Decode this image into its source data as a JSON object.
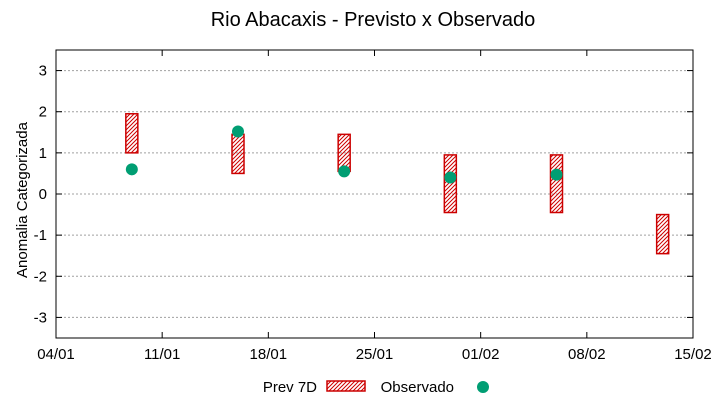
{
  "chart_data": {
    "type": "range-bar-scatter",
    "title": "Rio Abacaxis - Previsto x Observado",
    "ylabel": "Anomalia Categorizada",
    "xlabel": "",
    "xlim": [
      "2025-01-04",
      "2025-02-15"
    ],
    "ylim": [
      -3.5,
      3.5
    ],
    "grid": true,
    "x_ticks": [
      {
        "date": "2025-01-04",
        "label": "04/01"
      },
      {
        "date": "2025-01-11",
        "label": "11/01"
      },
      {
        "date": "2025-01-18",
        "label": "18/01"
      },
      {
        "date": "2025-01-25",
        "label": "25/01"
      },
      {
        "date": "2025-02-01",
        "label": "01/02"
      },
      {
        "date": "2025-02-08",
        "label": "08/02"
      },
      {
        "date": "2025-02-15",
        "label": "15/02"
      }
    ],
    "y_ticks": [
      {
        "value": 3,
        "label": "3"
      },
      {
        "value": 2,
        "label": "2"
      },
      {
        "value": 1,
        "label": "1"
      },
      {
        "value": 0,
        "label": "0"
      },
      {
        "value": -1,
        "label": "-1"
      },
      {
        "value": -2,
        "label": "-2"
      },
      {
        "value": -3,
        "label": "-3"
      }
    ],
    "series": [
      {
        "name": "Prev 7D",
        "style": "hatched-box",
        "color": "#cc0000",
        "points": [
          {
            "x": "2025-01-09",
            "low": 1.0,
            "high": 1.95
          },
          {
            "x": "2025-01-16",
            "low": 0.5,
            "high": 1.45
          },
          {
            "x": "2025-01-23",
            "low": 0.55,
            "high": 1.45
          },
          {
            "x": "2025-01-30",
            "low": -0.45,
            "high": 0.95
          },
          {
            "x": "2025-02-06",
            "low": -0.45,
            "high": 0.95
          },
          {
            "x": "2025-02-13",
            "low": -1.45,
            "high": -0.5
          }
        ]
      },
      {
        "name": "Observado",
        "style": "dot",
        "color": "#009e73",
        "points": [
          {
            "x": "2025-01-09",
            "y": 0.6
          },
          {
            "x": "2025-01-16",
            "y": 1.52
          },
          {
            "x": "2025-01-23",
            "y": 0.55
          },
          {
            "x": "2025-01-30",
            "y": 0.4
          },
          {
            "x": "2025-02-06",
            "y": 0.47
          }
        ]
      }
    ],
    "legend": {
      "placement": "bottom-center"
    }
  }
}
